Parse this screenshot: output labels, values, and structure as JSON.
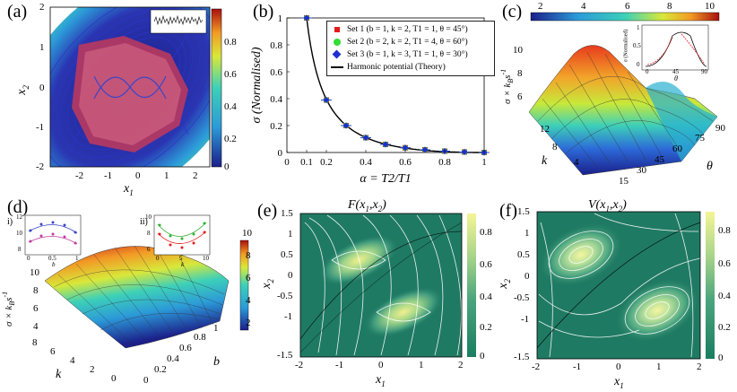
{
  "panels": {
    "a": {
      "label": "(a)",
      "xlabel": "x",
      "xsub": "1",
      "ylabel": "x",
      "ysub": "2",
      "xticks": [
        "-2",
        "-1",
        "0",
        "1",
        "2"
      ],
      "yticks": [
        "2",
        "1",
        "0",
        "-1",
        "-2"
      ],
      "cbar_ticks": [
        "0.8",
        "0.6",
        "0.4",
        "0.2",
        "0"
      ]
    },
    "b": {
      "label": "(b)"
    },
    "c": {
      "label": "(c)",
      "zlabel": "σ × k",
      "zsub": "B",
      "zunit": "s",
      "zsup": "-1",
      "klabel": "k",
      "thlabel": "θ",
      "zticks": [
        "10",
        "8",
        "6"
      ],
      "kticks": [
        "12",
        "8",
        "4"
      ],
      "thticks": [
        "15",
        "30",
        "45",
        "60",
        "75",
        "90"
      ],
      "cbar_ticks": [
        "2",
        "4",
        "6",
        "8",
        "10"
      ],
      "inset": {
        "ylabel": "σ (Normalised)",
        "xlabel": "θ",
        "xticks": [
          "0",
          "45",
          "90"
        ],
        "yticks": [
          "1",
          "0.5",
          "0"
        ]
      }
    },
    "d": {
      "label": "(d)",
      "zlabel": "σ × k",
      "zsub": "B",
      "zunit": "s",
      "zsup": "-1",
      "klabel": "k",
      "blabel": "b",
      "zticks": [
        "10",
        "8",
        "6",
        "4"
      ],
      "kticks": [
        "8",
        "6",
        "4",
        "2",
        "0"
      ],
      "bticks": [
        "0",
        "0.2",
        "0.4",
        "0.6",
        "0.8",
        "1"
      ],
      "cbar_ticks": [
        "10",
        "8",
        "6",
        "4",
        "2"
      ],
      "inset1": {
        "label": "i)",
        "xlabel": "b",
        "xticks": [
          "0",
          "0.5",
          "1"
        ],
        "yticks": [
          "12",
          "10",
          "8"
        ]
      },
      "inset2": {
        "label": "ii)",
        "xlabel": "k",
        "xticks": [
          "0",
          "5",
          "10"
        ],
        "yticks": [
          "10",
          "8",
          "6"
        ]
      }
    },
    "e": {
      "label": "(e)",
      "title": "F(x",
      "title_sub1": "1",
      "title_mid": ",x",
      "title_sub2": "2",
      "title_end": ")",
      "xlabel": "x",
      "xsub": "1",
      "ylabel": "x",
      "ysub": "2",
      "xticks": [
        "-2",
        "-1",
        "0",
        "1",
        "2"
      ],
      "yticks": [
        "1.5",
        "1",
        "0.5",
        "0",
        "-0.5",
        "-1",
        "-1.5"
      ],
      "cbar_ticks": [
        "0.8",
        "0.6",
        "0.4",
        "0.2",
        "0"
      ]
    },
    "f": {
      "label": "(f)",
      "title": "V(x",
      "title_sub1": "1",
      "title_mid": ",x",
      "title_sub2": "2",
      "title_end": ")",
      "xlabel": "x",
      "xsub": "1",
      "ylabel": "x",
      "ysub": "2",
      "xticks": [
        "-2",
        "-1",
        "0",
        "1",
        "2"
      ],
      "yticks": [
        "1.5",
        "1",
        "0.5",
        "0",
        "-0.5",
        "-1",
        "-1.5"
      ],
      "cbar_ticks": [
        "0.8",
        "0.6",
        "0.4",
        "0.2",
        "0"
      ]
    }
  },
  "chart_data": [
    {
      "type": "scatter",
      "panel": "b",
      "title": "",
      "xlabel": "α = T2/T1",
      "ylabel": "σ (Normalised)",
      "xlim": [
        0,
        1
      ],
      "ylim": [
        0,
        1
      ],
      "xticks": [
        "0",
        "0.1",
        "0.2",
        "0.4",
        "0.6",
        "0.8",
        "1"
      ],
      "yticks": [
        "1",
        "0.8",
        "0.6",
        "0.4",
        "0.2",
        "0"
      ],
      "x": [
        0.1,
        0.2,
        0.3,
        0.4,
        0.5,
        0.6,
        0.7,
        0.8,
        0.9,
        1.0
      ],
      "series": [
        {
          "name": "Set 1 (b = 1, k = 2, T1 = 1, θ = 45°)",
          "color": "#e41a1c",
          "values": [
            1.0,
            0.39,
            0.2,
            0.11,
            0.06,
            0.035,
            0.02,
            0.01,
            0.004,
            0.0
          ]
        },
        {
          "name": "Set 2 (b = 2, k = 2, T1 = 4, θ = 60°)",
          "color": "#33dd33",
          "values": [
            1.0,
            0.39,
            0.2,
            0.11,
            0.06,
            0.035,
            0.02,
            0.01,
            0.004,
            0.0
          ]
        },
        {
          "name": "Set 3 (b = 1, k = 3, T1 = 1, θ = 30°)",
          "color": "#1f2fd0",
          "values": [
            1.0,
            0.39,
            0.2,
            0.11,
            0.06,
            0.035,
            0.02,
            0.01,
            0.004,
            0.0
          ]
        }
      ],
      "theory": {
        "name": "Harmonic potential (Theory)",
        "color": "#000000"
      }
    }
  ]
}
